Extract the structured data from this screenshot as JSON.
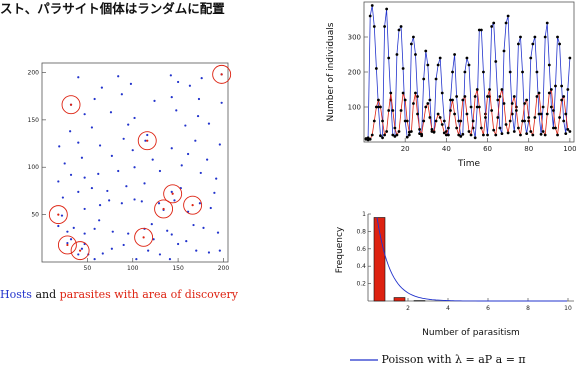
{
  "header": {
    "title_fragment": "スト、パラサイト個体はランダムに配置"
  },
  "scatter": {
    "legend_hosts": "Hosts",
    "legend_and": "and",
    "legend_parasites": "parasites with area of discovery",
    "colors": {
      "host": "#2233cc",
      "parasite": "#dd2211"
    }
  },
  "chart_data": [
    {
      "type": "scatter",
      "xlim": [
        0,
        205
      ],
      "ylim": [
        0,
        210
      ],
      "xticks": [
        50,
        100,
        150,
        200
      ],
      "yticks": [
        50,
        100,
        150,
        200
      ],
      "hosts": [
        [
          28,
          20
        ],
        [
          32,
          24
        ],
        [
          40,
          8
        ],
        [
          44,
          14
        ],
        [
          47,
          19
        ],
        [
          51,
          8
        ],
        [
          58,
          3
        ],
        [
          67,
          9
        ],
        [
          77,
          14
        ],
        [
          90,
          18
        ],
        [
          104,
          3
        ],
        [
          117,
          12
        ],
        [
          123,
          24
        ],
        [
          130,
          8
        ],
        [
          141,
          3
        ],
        [
          150,
          19
        ],
        [
          159,
          22
        ],
        [
          170,
          12
        ],
        [
          184,
          10
        ],
        [
          196,
          12
        ],
        [
          18,
          38
        ],
        [
          28,
          32
        ],
        [
          35,
          36
        ],
        [
          47,
          30
        ],
        [
          58,
          35
        ],
        [
          63,
          44
        ],
        [
          78,
          32
        ],
        [
          95,
          30
        ],
        [
          113,
          35
        ],
        [
          121,
          40
        ],
        [
          138,
          33
        ],
        [
          143,
          29
        ],
        [
          167,
          39
        ],
        [
          178,
          36
        ],
        [
          194,
          31
        ],
        [
          22,
          49
        ],
        [
          47,
          56
        ],
        [
          64,
          60
        ],
        [
          74,
          65
        ],
        [
          88,
          62
        ],
        [
          102,
          66
        ],
        [
          110,
          64
        ],
        [
          129,
          62
        ],
        [
          134,
          55
        ],
        [
          146,
          65
        ],
        [
          161,
          53
        ],
        [
          174,
          62
        ],
        [
          186,
          57
        ],
        [
          23,
          68
        ],
        [
          40,
          74
        ],
        [
          55,
          78
        ],
        [
          72,
          75
        ],
        [
          93,
          80
        ],
        [
          113,
          83
        ],
        [
          143,
          74
        ],
        [
          153,
          78
        ],
        [
          190,
          73
        ],
        [
          18,
          85
        ],
        [
          32,
          92
        ],
        [
          47,
          89
        ],
        [
          62,
          93
        ],
        [
          84,
          96
        ],
        [
          102,
          100
        ],
        [
          130,
          96
        ],
        [
          154,
          102
        ],
        [
          175,
          94
        ],
        [
          192,
          88
        ],
        [
          25,
          104
        ],
        [
          44,
          110
        ],
        [
          77,
          112
        ],
        [
          100,
          118
        ],
        [
          122,
          108
        ],
        [
          161,
          114
        ],
        [
          182,
          108
        ],
        [
          19,
          122
        ],
        [
          40,
          126
        ],
        [
          64,
          123
        ],
        [
          90,
          130
        ],
        [
          114,
          128
        ],
        [
          143,
          120
        ],
        [
          169,
          128
        ],
        [
          196,
          124
        ],
        [
          31,
          138
        ],
        [
          55,
          142
        ],
        [
          95,
          145
        ],
        [
          116,
          134
        ],
        [
          158,
          144
        ],
        [
          184,
          146
        ],
        [
          47,
          156
        ],
        [
          76,
          158
        ],
        [
          102,
          152
        ],
        [
          148,
          160
        ],
        [
          172,
          154
        ],
        [
          32,
          166
        ],
        [
          58,
          172
        ],
        [
          88,
          177
        ],
        [
          124,
          170
        ],
        [
          143,
          174
        ],
        [
          173,
          172
        ],
        [
          198,
          168
        ],
        [
          66,
          184
        ],
        [
          98,
          188
        ],
        [
          150,
          190
        ],
        [
          163,
          186
        ],
        [
          176,
          194
        ],
        [
          198,
          198
        ],
        [
          40,
          195
        ],
        [
          84,
          196
        ],
        [
          142,
          197
        ]
      ],
      "parasites": [
        [
          32,
          166
        ],
        [
          116,
          128
        ],
        [
          198,
          198
        ],
        [
          144,
          72
        ],
        [
          134,
          56
        ],
        [
          166,
          60
        ],
        [
          18,
          50
        ],
        [
          112,
          26
        ],
        [
          28,
          18
        ],
        [
          42,
          12
        ]
      ]
    },
    {
      "type": "line",
      "xlabel": "Time",
      "ylabel": "Number of individuals",
      "xlim": [
        0,
        100
      ],
      "ylim": [
        0,
        400
      ],
      "xticks": [
        20,
        40,
        60,
        80,
        100
      ],
      "yticks": [
        100,
        200,
        300
      ],
      "series": [
        {
          "values": [
            8,
            12,
            360,
            390,
            330,
            210,
            100,
            18,
            12,
            330,
            380,
            240,
            120,
            20,
            16,
            250,
            320,
            330,
            210,
            60,
            14,
            20,
            280,
            300,
            250,
            130,
            24,
            18,
            180,
            260,
            220,
            120,
            30,
            30,
            180,
            220,
            240,
            140,
            60,
            30,
            20,
            120,
            200,
            250,
            130,
            60,
            16,
            22,
            200,
            240,
            220,
            100,
            40,
            12,
            100,
            320,
            320,
            200,
            80,
            20,
            130,
            330,
            340,
            230,
            120,
            40,
            24,
            260,
            340,
            360,
            200,
            80,
            30,
            100,
            280,
            300,
            200,
            60,
            24,
            60,
            240,
            280,
            300,
            200,
            80,
            22,
            100,
            300,
            340,
            220,
            100,
            40,
            160,
            300,
            280,
            160,
            60,
            24,
            150,
            240
          ]
        },
        {
          "values": [
            10,
            6,
            8,
            20,
            60,
            100,
            120,
            100,
            60,
            20,
            30,
            90,
            140,
            90,
            40,
            20,
            30,
            90,
            140,
            120,
            60,
            28,
            30,
            110,
            140,
            80,
            36,
            22,
            60,
            100,
            110,
            70,
            36,
            28,
            60,
            80,
            70,
            50,
            26,
            20,
            40,
            90,
            120,
            80,
            40,
            20,
            60,
            120,
            130,
            80,
            30,
            20,
            60,
            130,
            150,
            100,
            40,
            20,
            70,
            130,
            150,
            90,
            34,
            20,
            70,
            130,
            150,
            110,
            50,
            26,
            60,
            110,
            130,
            90,
            40,
            20,
            60,
            110,
            120,
            70,
            30,
            20,
            70,
            130,
            140,
            80,
            30,
            20,
            80,
            140,
            150,
            90,
            40,
            20,
            70,
            120,
            130,
            80,
            36,
            30
          ]
        }
      ]
    },
    {
      "type": "bar",
      "xlabel": "Number of parasitism",
      "ylabel": "Frequency",
      "xlim": [
        0,
        10
      ],
      "ylim": [
        0,
        1
      ],
      "xticks": [
        2,
        4,
        6,
        8,
        10
      ],
      "yticks": [
        0.2,
        0.4,
        0.6,
        0.8,
        1
      ],
      "categories": [
        0,
        1,
        2
      ],
      "values": [
        0.96,
        0.04,
        0.005
      ],
      "fit_lambda": 0.04,
      "fit_legend_text": "Poisson with λ = aP   a = π"
    }
  ]
}
